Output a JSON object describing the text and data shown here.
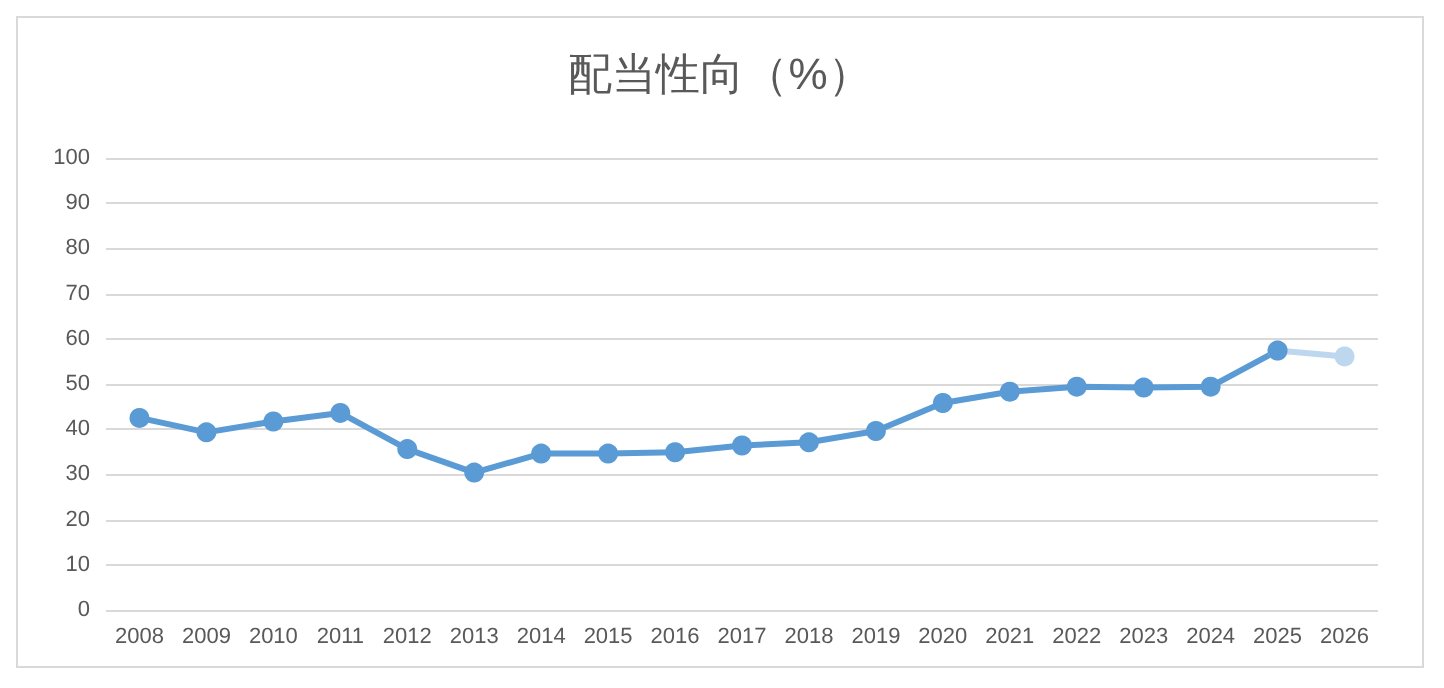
{
  "chart_data": {
    "type": "line",
    "title": "配当性向（%）",
    "categories": [
      "2008",
      "2009",
      "2010",
      "2011",
      "2012",
      "2013",
      "2014",
      "2015",
      "2016",
      "2017",
      "2018",
      "2019",
      "2020",
      "2021",
      "2022",
      "2023",
      "2024",
      "2025",
      "2026"
    ],
    "series": [
      {
        "color": "#bdd7ee",
        "values": [
          null,
          null,
          null,
          null,
          null,
          null,
          null,
          null,
          null,
          null,
          null,
          null,
          null,
          null,
          null,
          null,
          null,
          57.4,
          56.1
        ]
      },
      {
        "color": "#5b9bd5",
        "values": [
          42.5,
          39.3,
          41.7,
          43.6,
          35.6,
          30.4,
          34.6,
          34.6,
          34.9,
          36.4,
          37.1,
          39.6,
          45.8,
          48.3,
          49.4,
          49.2,
          49.4,
          57.4,
          null
        ]
      }
    ],
    "ylim": [
      0,
      100
    ],
    "yticks": [
      0,
      10,
      20,
      30,
      40,
      50,
      60,
      70,
      80,
      90,
      100
    ],
    "grid": "y",
    "marker": "circle",
    "line_style": "solid"
  }
}
